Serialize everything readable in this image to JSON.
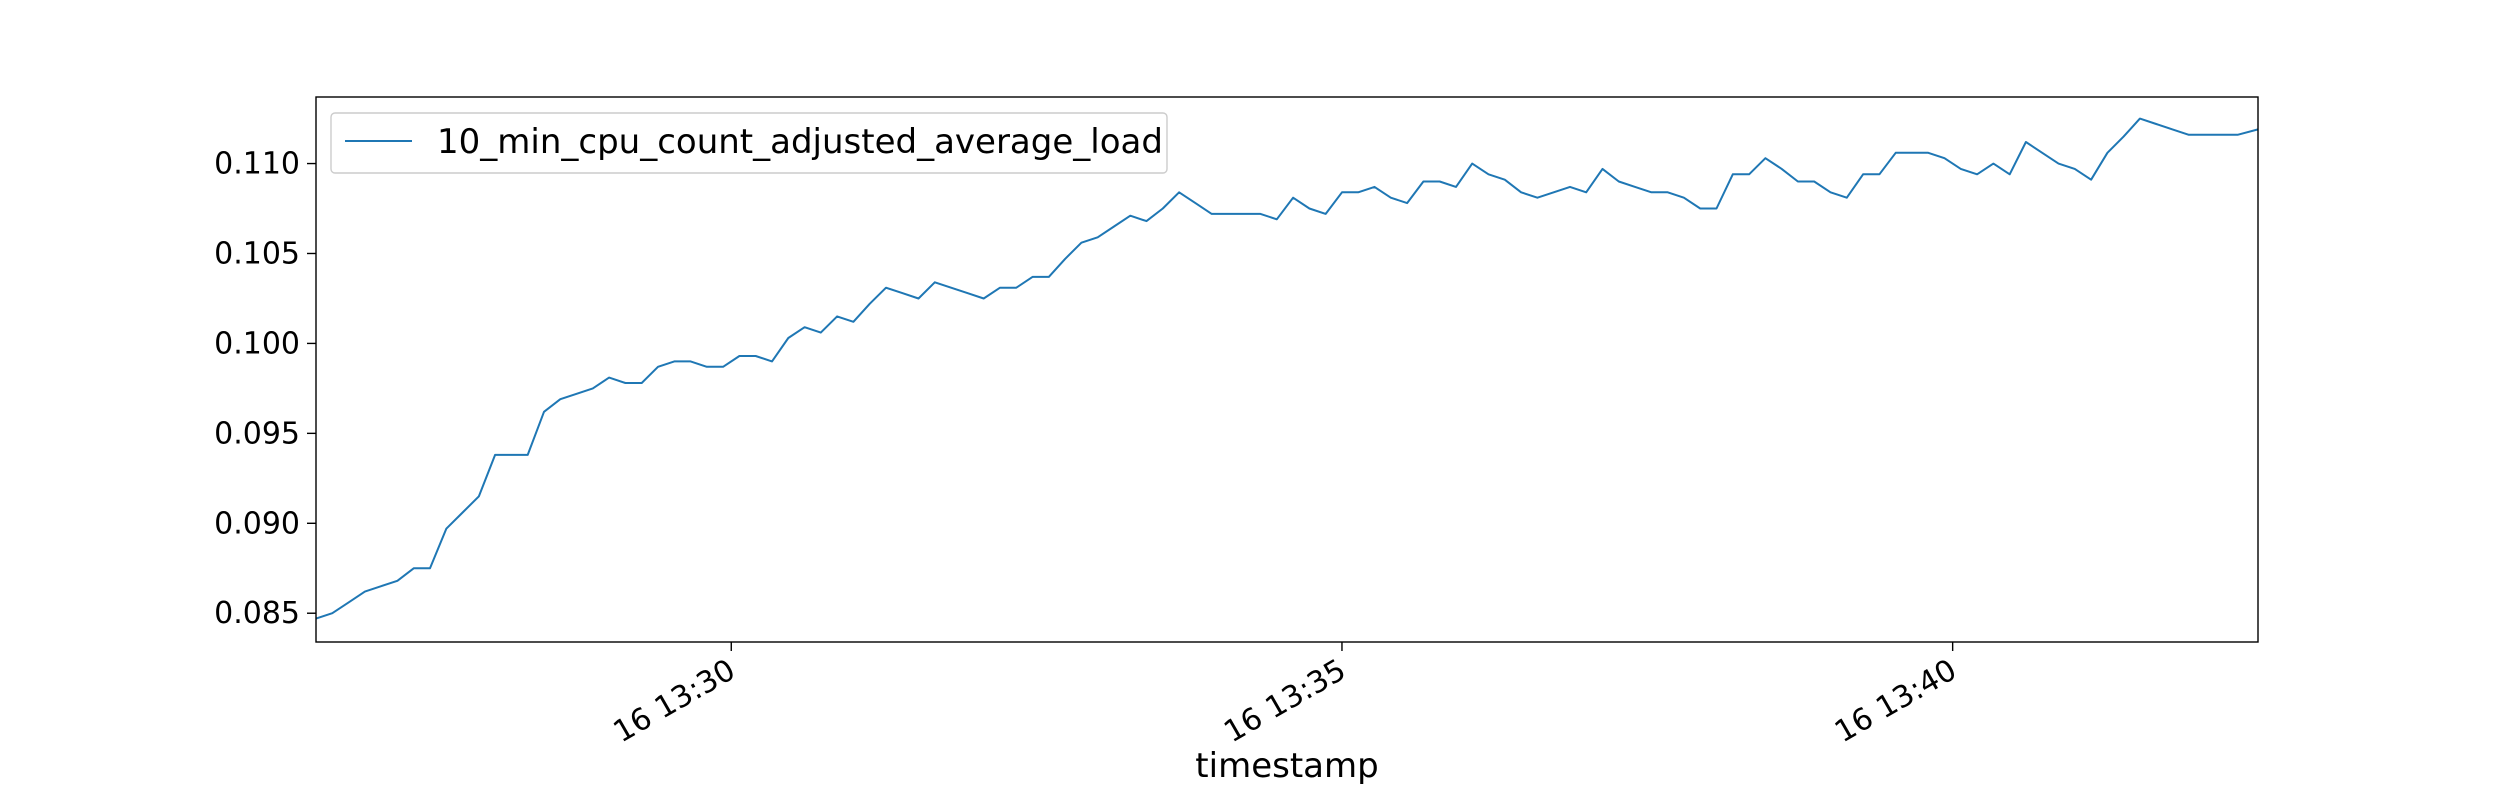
{
  "chart_data": {
    "type": "line",
    "xlabel": "timestamp",
    "ylabel": "",
    "title": "",
    "x_start": "13:26:36",
    "x_end": "13:42:30",
    "x_ticks": [
      {
        "time": "13:30:00",
        "label": "16 13:30"
      },
      {
        "time": "13:35:00",
        "label": "16 13:35"
      },
      {
        "time": "13:40:00",
        "label": "16 13:40"
      }
    ],
    "ylim": [
      0.0834,
      0.1137
    ],
    "y_ticks": [
      {
        "value": 0.085,
        "label": "0.085"
      },
      {
        "value": 0.09,
        "label": "0.090"
      },
      {
        "value": 0.095,
        "label": "0.095"
      },
      {
        "value": 0.1,
        "label": "0.100"
      },
      {
        "value": 0.105,
        "label": "0.105"
      },
      {
        "value": 0.11,
        "label": "0.110"
      }
    ],
    "grid": false,
    "legend_position": "top-left",
    "series": [
      {
        "name": "10_min_cpu_count_adjusted_average_load",
        "color": "#1f77b4",
        "x": [
          "13:26:36",
          "13:26:44",
          "13:26:52",
          "13:27:00",
          "13:27:08",
          "13:27:16",
          "13:27:24",
          "13:27:32",
          "13:27:40",
          "13:27:48",
          "13:27:56",
          "13:28:04",
          "13:28:12",
          "13:28:20",
          "13:28:28",
          "13:28:36",
          "13:28:44",
          "13:28:52",
          "13:29:00",
          "13:29:08",
          "13:29:16",
          "13:29:24",
          "13:29:32",
          "13:29:40",
          "13:29:48",
          "13:29:56",
          "13:30:04",
          "13:30:12",
          "13:30:20",
          "13:30:28",
          "13:30:36",
          "13:30:44",
          "13:30:52",
          "13:31:00",
          "13:31:08",
          "13:31:16",
          "13:31:24",
          "13:31:32",
          "13:31:40",
          "13:31:48",
          "13:31:56",
          "13:32:04",
          "13:32:12",
          "13:32:20",
          "13:32:28",
          "13:32:36",
          "13:32:44",
          "13:32:52",
          "13:33:00",
          "13:33:08",
          "13:33:16",
          "13:33:24",
          "13:33:32",
          "13:33:40",
          "13:33:48",
          "13:33:56",
          "13:34:04",
          "13:34:12",
          "13:34:20",
          "13:34:28",
          "13:34:36",
          "13:34:44",
          "13:34:52",
          "13:35:00",
          "13:35:08",
          "13:35:16",
          "13:35:24",
          "13:35:32",
          "13:35:40",
          "13:35:48",
          "13:35:56",
          "13:36:04",
          "13:36:12",
          "13:36:20",
          "13:36:28",
          "13:36:36",
          "13:36:44",
          "13:36:52",
          "13:37:00",
          "13:37:08",
          "13:37:16",
          "13:37:24",
          "13:37:32",
          "13:37:40",
          "13:37:48",
          "13:37:56",
          "13:38:04",
          "13:38:12",
          "13:38:20",
          "13:38:28",
          "13:38:36",
          "13:38:44",
          "13:38:52",
          "13:39:00",
          "13:39:08",
          "13:39:16",
          "13:39:24",
          "13:39:32",
          "13:39:40",
          "13:39:48",
          "13:39:56",
          "13:40:04",
          "13:40:12",
          "13:40:20",
          "13:40:28",
          "13:40:36",
          "13:40:44",
          "13:40:52",
          "13:41:00",
          "13:41:08",
          "13:41:16",
          "13:41:24",
          "13:41:32",
          "13:41:40",
          "13:41:48",
          "13:41:56",
          "13:42:04",
          "13:42:12",
          "13:42:20",
          "13:42:30"
        ],
        "y": [
          0.0847,
          0.085,
          0.0856,
          0.0862,
          0.0865,
          0.0868,
          0.0875,
          0.0875,
          0.0897,
          0.0906,
          0.0915,
          0.0938,
          0.0938,
          0.0938,
          0.0962,
          0.0969,
          0.0972,
          0.0975,
          0.0981,
          0.0978,
          0.0978,
          0.0987,
          0.099,
          0.099,
          0.0987,
          0.0987,
          0.0993,
          0.0993,
          0.099,
          0.1003,
          0.1009,
          0.1006,
          0.1015,
          0.1012,
          0.1022,
          0.1031,
          0.1028,
          0.1025,
          0.1034,
          0.1031,
          0.1028,
          0.1025,
          0.1031,
          0.1031,
          0.1037,
          0.1037,
          0.1047,
          0.1056,
          0.1059,
          0.1065,
          0.1071,
          0.1068,
          0.1075,
          0.1084,
          0.1078,
          0.1072,
          0.1072,
          0.1072,
          0.1072,
          0.1069,
          0.1081,
          0.1075,
          0.1072,
          0.1084,
          0.1084,
          0.1087,
          0.1081,
          0.1078,
          0.109,
          0.109,
          0.1087,
          0.11,
          0.1094,
          0.1091,
          0.1084,
          0.1081,
          0.1084,
          0.1087,
          0.1084,
          0.1097,
          0.109,
          0.1087,
          0.1084,
          0.1084,
          0.1081,
          0.1075,
          0.1075,
          0.1094,
          0.1094,
          0.1103,
          0.1097,
          0.109,
          0.109,
          0.1084,
          0.1081,
          0.1094,
          0.1094,
          0.1106,
          0.1106,
          0.1106,
          0.1103,
          0.1097,
          0.1094,
          0.11,
          0.1094,
          0.1112,
          0.1106,
          0.11,
          0.1097,
          0.1091,
          0.1106,
          0.1115,
          0.1125,
          0.1122,
          0.1119,
          0.1116,
          0.1116,
          0.1116,
          0.1116,
          0.1119
        ]
      }
    ]
  }
}
